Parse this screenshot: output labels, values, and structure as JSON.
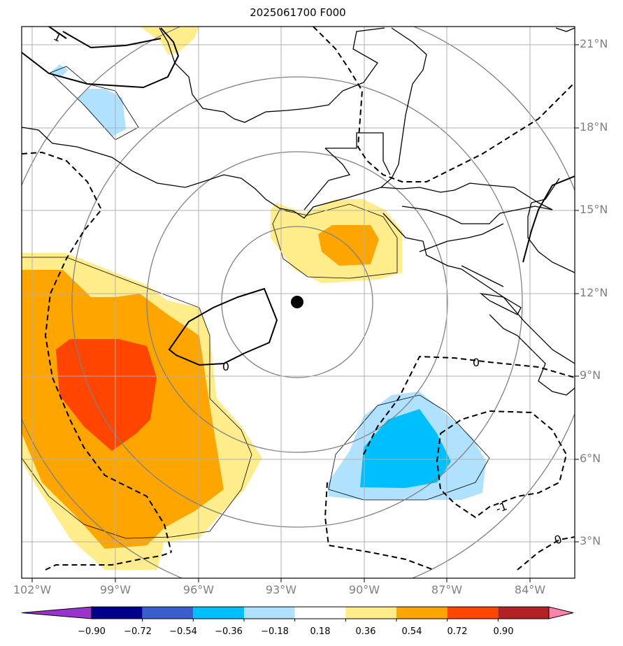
{
  "title": "2025061700 F000",
  "lat_labels": [
    "21°N",
    "18°N",
    "15°N",
    "12°N",
    "9°N",
    "6°N",
    "3°N"
  ],
  "lon_labels": [
    "102°W",
    "99°W",
    "96°W",
    "93°W",
    "90°W",
    "87°W",
    "84°W"
  ],
  "contour_labels": [
    "1",
    "0",
    "0",
    "-1",
    "0"
  ],
  "colorbar": {
    "tick_labels": [
      "−0.90",
      "−0.72",
      "−0.54",
      "−0.36",
      "−0.18",
      "0.18",
      "0.36",
      "0.54",
      "0.72",
      "0.90"
    ],
    "colors": [
      "#9a32cd",
      "#00008b",
      "#3a5fcd",
      "#00bfff",
      "#b0e2ff",
      "#ffffff",
      "#ffec8b",
      "#ffa500",
      "#ff4500",
      "#b22222",
      "#ff82ab"
    ]
  },
  "storm_center": {
    "lon": -92.3,
    "lat": 11.7
  },
  "map_extent": {
    "lon_min": -102.4,
    "lon_max": -82.3,
    "lat_min": 1.8,
    "lat_max": 21.7
  },
  "colors": {
    "grid": "#b0b0b0",
    "range_rings": "#808080",
    "coast": "#000000"
  }
}
